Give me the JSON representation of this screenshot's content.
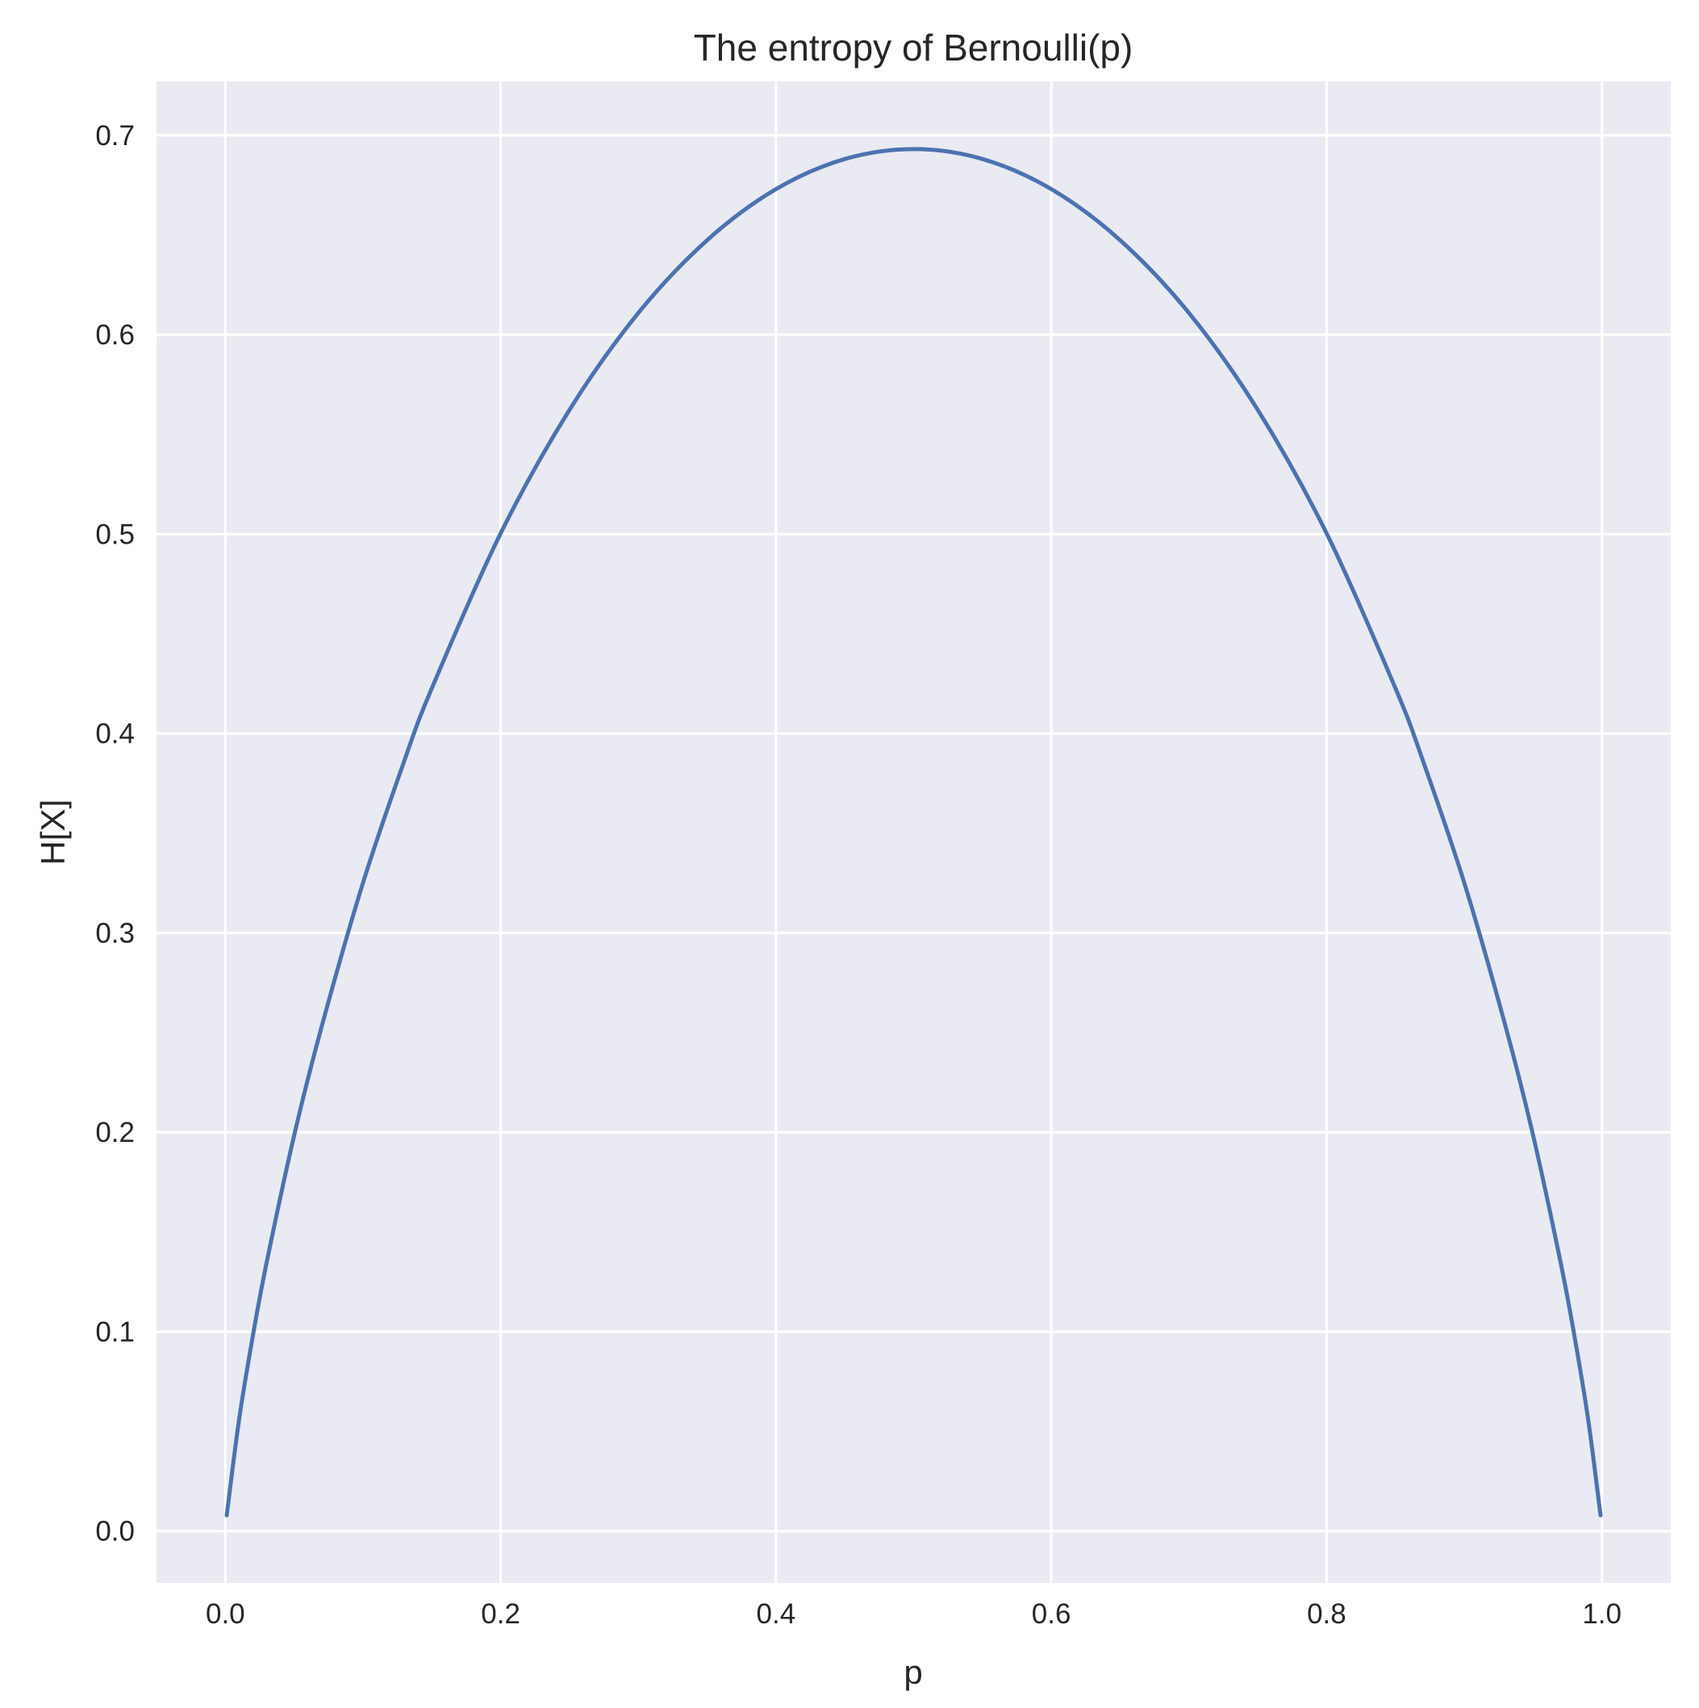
{
  "chart_data": {
    "type": "line",
    "title": "The entropy of Bernoulli(p)",
    "xlabel": "p",
    "ylabel": "H[X]",
    "xlim": [
      -0.05,
      1.05
    ],
    "ylim": [
      -0.026,
      0.727
    ],
    "xticks": [
      0.0,
      0.2,
      0.4,
      0.6,
      0.8,
      1.0
    ],
    "xtick_labels": [
      "0.0",
      "0.2",
      "0.4",
      "0.6",
      "0.8",
      "1.0"
    ],
    "yticks": [
      0.0,
      0.1,
      0.2,
      0.3,
      0.4,
      0.5,
      0.6,
      0.7
    ],
    "ytick_labels": [
      "0.0",
      "0.1",
      "0.2",
      "0.3",
      "0.4",
      "0.5",
      "0.6",
      "0.7"
    ],
    "grid": true,
    "background_color": "#eaeaf2",
    "grid_color": "#ffffff",
    "series": [
      {
        "color": "#4c72b0",
        "x": [
          0.001,
          0.01,
          0.02,
          0.03,
          0.05,
          0.07,
          0.1,
          0.13,
          0.15,
          0.2,
          0.25,
          0.3,
          0.35,
          0.4,
          0.45,
          0.5,
          0.55,
          0.6,
          0.65,
          0.7,
          0.75,
          0.8,
          0.85,
          0.87,
          0.9,
          0.93,
          0.95,
          0.97,
          0.98,
          0.99,
          0.999
        ],
        "y": [
          0.0079,
          0.056,
          0.098,
          0.1347,
          0.1985,
          0.2531,
          0.3251,
          0.3863,
          0.4227,
          0.5004,
          0.5623,
          0.6109,
          0.6474,
          0.673,
          0.6881,
          0.6931,
          0.6881,
          0.673,
          0.6474,
          0.6109,
          0.5623,
          0.5004,
          0.4227,
          0.3863,
          0.3251,
          0.2531,
          0.1985,
          0.1347,
          0.098,
          0.056,
          0.0079
        ]
      }
    ]
  }
}
